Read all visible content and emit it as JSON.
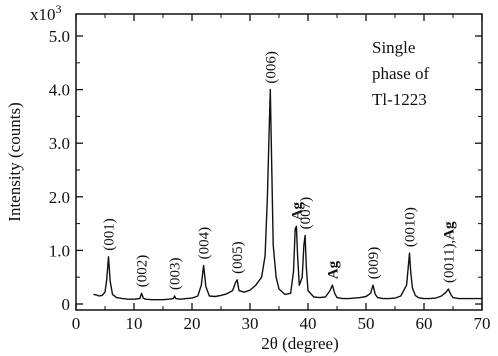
{
  "chart_data": {
    "type": "line",
    "multiplier_label": "x10",
    "multiplier_exp": "3",
    "xlabel": "2θ  (degree)",
    "ylabel": "Intensity  (counts)",
    "xlim": [
      0,
      70
    ],
    "ylim": [
      0,
      5.0
    ],
    "x_ticks": [
      "0",
      "10",
      "20",
      "30",
      "40",
      "50",
      "60",
      "70"
    ],
    "y_ticks": [
      "0",
      "1.0",
      "2.0",
      "3.0",
      "4.0",
      "5.0"
    ],
    "annotation_lines": [
      "Single",
      "phase of",
      "Tl-1223"
    ],
    "peaks": [
      {
        "label": "(001)",
        "x": 5.6,
        "y": 0.88,
        "kind": "hkl"
      },
      {
        "label": "(002)",
        "x": 11.3,
        "y": 0.2,
        "kind": "hkl"
      },
      {
        "label": "(003)",
        "x": 17.0,
        "y": 0.15,
        "kind": "hkl"
      },
      {
        "label": "(004)",
        "x": 22.0,
        "y": 0.72,
        "kind": "hkl"
      },
      {
        "label": "(005)",
        "x": 27.8,
        "y": 0.45,
        "kind": "hkl"
      },
      {
        "label": "(006)",
        "x": 33.5,
        "y": 4.0,
        "kind": "hkl"
      },
      {
        "label": "Ag",
        "x": 38.0,
        "y": 1.45,
        "kind": "ag"
      },
      {
        "label": "(007)",
        "x": 39.5,
        "y": 1.28,
        "kind": "hkl"
      },
      {
        "label": "Ag",
        "x": 44.2,
        "y": 0.35,
        "kind": "ag"
      },
      {
        "label": "(009)",
        "x": 51.2,
        "y": 0.35,
        "kind": "hkl"
      },
      {
        "label": "(0010)",
        "x": 57.5,
        "y": 0.95,
        "kind": "hkl"
      },
      {
        "label": "(0011),Ag",
        "x": 64.2,
        "y": 0.28,
        "kind": "hkl-ag"
      }
    ],
    "series": [
      {
        "x": [
          3.0,
          3.5,
          4.0,
          4.5,
          5.0,
          5.3,
          5.6,
          5.9,
          6.3,
          7.0,
          8.0,
          9.0,
          10.0,
          11.0,
          11.3,
          11.6,
          12.0,
          13.0,
          14.0,
          15.0,
          16.0,
          16.8,
          17.0,
          17.2,
          18.0,
          19.0,
          20.0,
          21.0,
          21.6,
          22.0,
          22.4,
          23.0,
          24.0,
          25.0,
          26.0,
          27.0,
          27.5,
          27.8,
          28.1,
          29.0,
          30.0,
          31.0,
          32.0,
          32.6,
          33.0,
          33.3,
          33.5,
          33.7,
          34.0,
          34.5,
          35.0,
          36.0,
          37.0,
          37.5,
          37.8,
          38.0,
          38.2,
          38.5,
          39.0,
          39.3,
          39.5,
          39.7,
          40.0,
          41.0,
          42.0,
          43.0,
          43.8,
          44.2,
          44.6,
          45.0,
          46.0,
          47.0,
          48.0,
          49.0,
          50.0,
          50.8,
          51.2,
          51.6,
          52.0,
          53.0,
          54.0,
          55.0,
          56.0,
          57.0,
          57.3,
          57.5,
          57.7,
          58.0,
          58.5,
          59.0,
          60.0,
          61.0,
          62.0,
          63.0,
          63.8,
          64.2,
          64.6,
          65.0,
          66.0,
          67.0,
          68.0,
          69.0,
          70.0
        ],
        "y": [
          0.18,
          0.17,
          0.15,
          0.16,
          0.22,
          0.45,
          0.88,
          0.42,
          0.18,
          0.12,
          0.1,
          0.09,
          0.09,
          0.1,
          0.2,
          0.11,
          0.09,
          0.08,
          0.08,
          0.08,
          0.09,
          0.1,
          0.15,
          0.1,
          0.09,
          0.1,
          0.11,
          0.15,
          0.35,
          0.72,
          0.32,
          0.15,
          0.14,
          0.16,
          0.19,
          0.25,
          0.4,
          0.45,
          0.25,
          0.22,
          0.26,
          0.35,
          0.5,
          0.9,
          2.0,
          3.2,
          4.0,
          2.8,
          1.1,
          0.5,
          0.28,
          0.18,
          0.2,
          0.6,
          1.4,
          1.45,
          0.9,
          0.35,
          0.5,
          1.1,
          1.28,
          0.7,
          0.25,
          0.13,
          0.12,
          0.13,
          0.25,
          0.35,
          0.2,
          0.12,
          0.1,
          0.1,
          0.11,
          0.12,
          0.14,
          0.2,
          0.35,
          0.18,
          0.12,
          0.1,
          0.1,
          0.11,
          0.15,
          0.35,
          0.7,
          0.95,
          0.6,
          0.3,
          0.16,
          0.12,
          0.1,
          0.1,
          0.11,
          0.15,
          0.22,
          0.28,
          0.18,
          0.12,
          0.1,
          0.1,
          0.1,
          0.1,
          0.1
        ]
      }
    ]
  }
}
